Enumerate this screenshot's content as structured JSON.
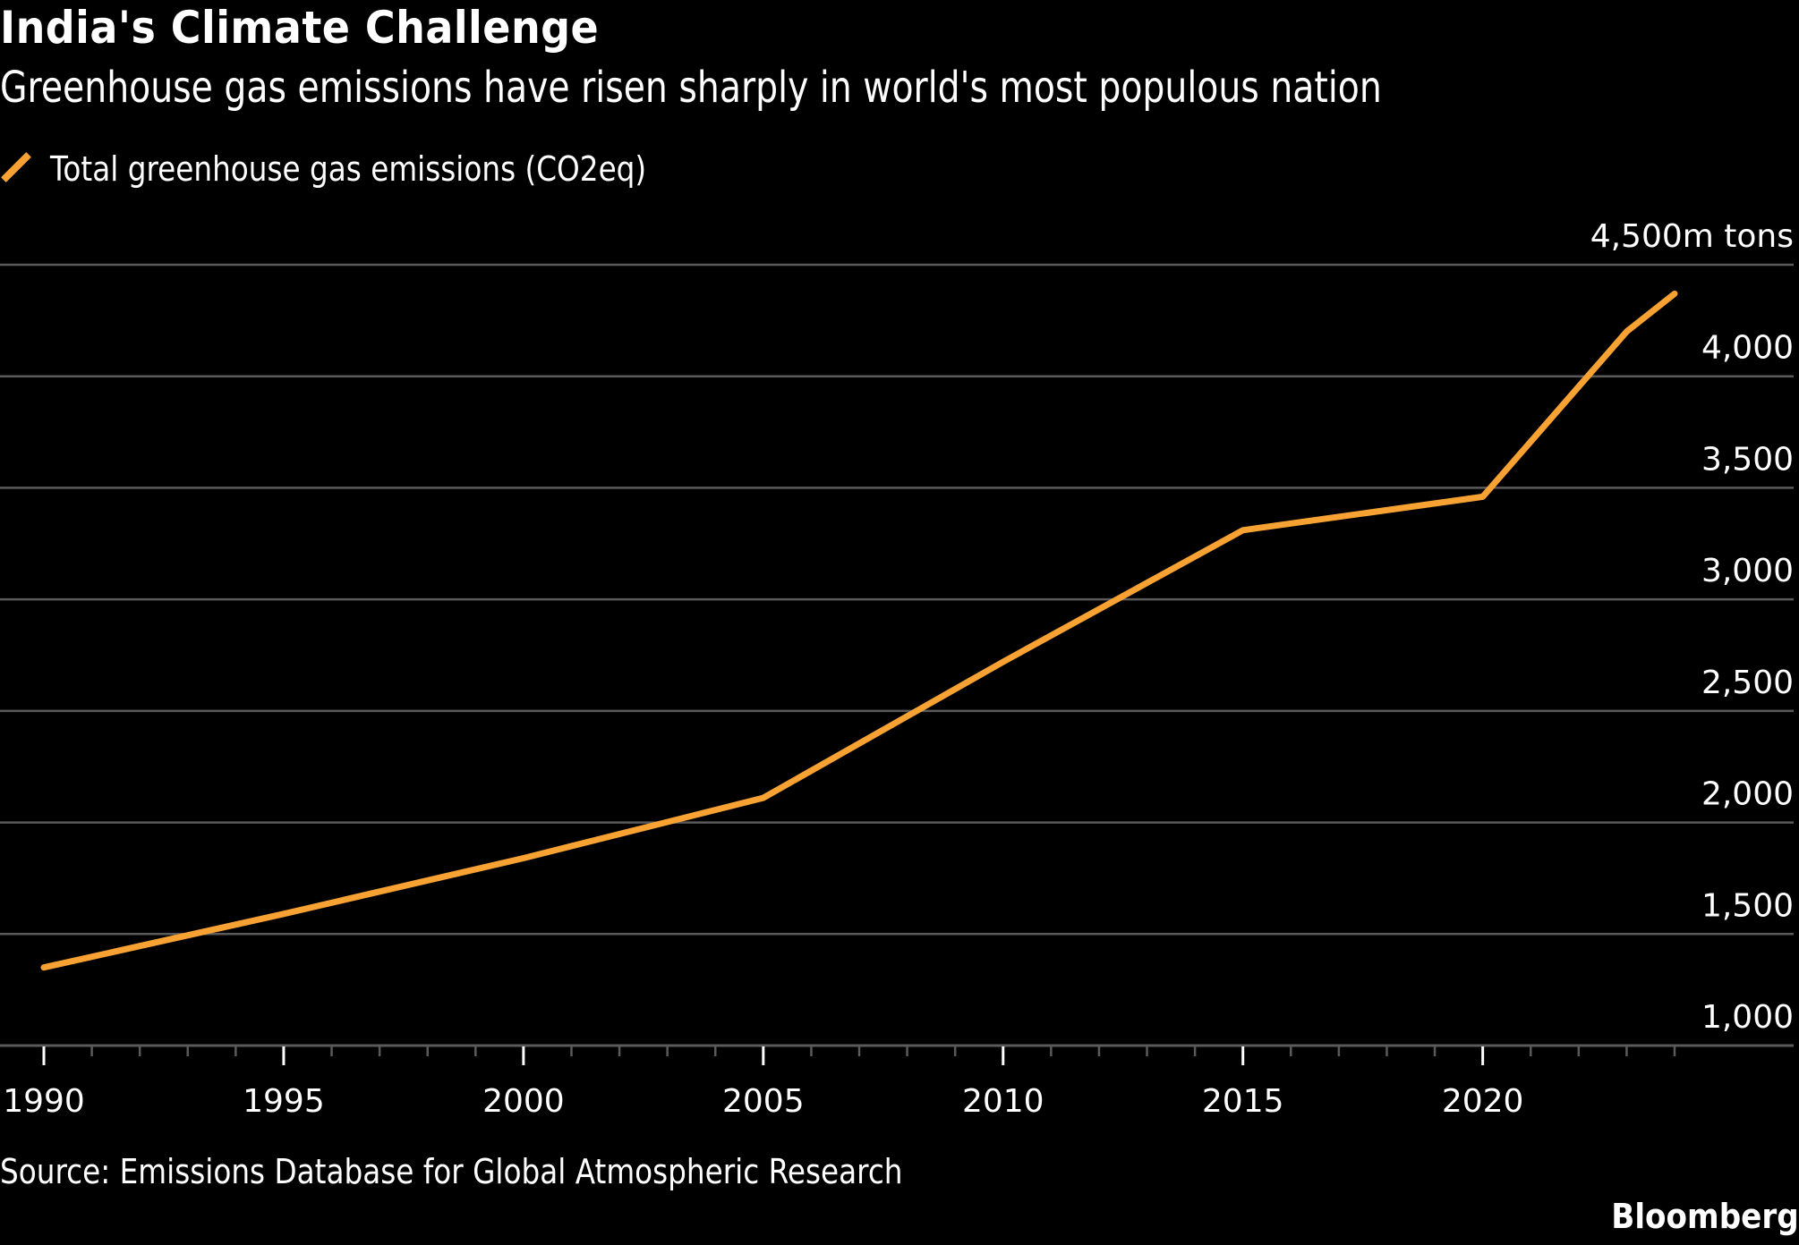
{
  "header": {
    "title": "India's Climate Challenge",
    "subtitle": "Greenhouse gas emissions have risen sharply in world's most populous nation"
  },
  "legend": {
    "items": [
      {
        "label": "Total greenhouse gas emissions (CO2eq)",
        "icon": "diagonal-line-swatch",
        "color": "#f7a233"
      }
    ]
  },
  "footer": {
    "source": "Source: Emissions Database for Global Atmospheric Research",
    "brand": "Bloomberg"
  },
  "colors": {
    "background": "#000000",
    "accent": "#f7a233",
    "gridline": "#5a5a5a",
    "text": "#ffffff"
  },
  "chart_data": {
    "type": "line",
    "title": "India's Climate Challenge",
    "subtitle": "Greenhouse gas emissions have risen sharply in world's most populous nation",
    "xlabel": "",
    "ylabel": "m tons",
    "y_unit_label": "4,500m tons",
    "x": [
      1990,
      1995,
      2000,
      2005,
      2010,
      2015,
      2020,
      2023,
      2024
    ],
    "series": [
      {
        "name": "Total greenhouse gas emissions (CO2eq)",
        "color": "#f7a233",
        "values": [
          1350,
          1590,
          1840,
          2110,
          2720,
          3310,
          3460,
          4200,
          4370
        ]
      }
    ],
    "xlim": [
      1990,
      2024
    ],
    "ylim": [
      1000,
      4500
    ],
    "x_ticks_major": [
      1990,
      1995,
      2000,
      2005,
      2010,
      2015,
      2020
    ],
    "x_tick_labels": [
      "1990",
      "1995",
      "2000",
      "2005",
      "2010",
      "2015",
      "2020"
    ],
    "x_ticks_minor_step": 1,
    "y_ticks": [
      1000,
      1500,
      2000,
      2500,
      3000,
      3500,
      4000,
      4500
    ],
    "y_tick_labels": [
      "1,000",
      "1,500",
      "2,000",
      "2,500",
      "3,000",
      "3,500",
      "4,000",
      "4,500m tons"
    ],
    "grid": true,
    "y_axis_side": "right",
    "legend_position": "top-left"
  }
}
